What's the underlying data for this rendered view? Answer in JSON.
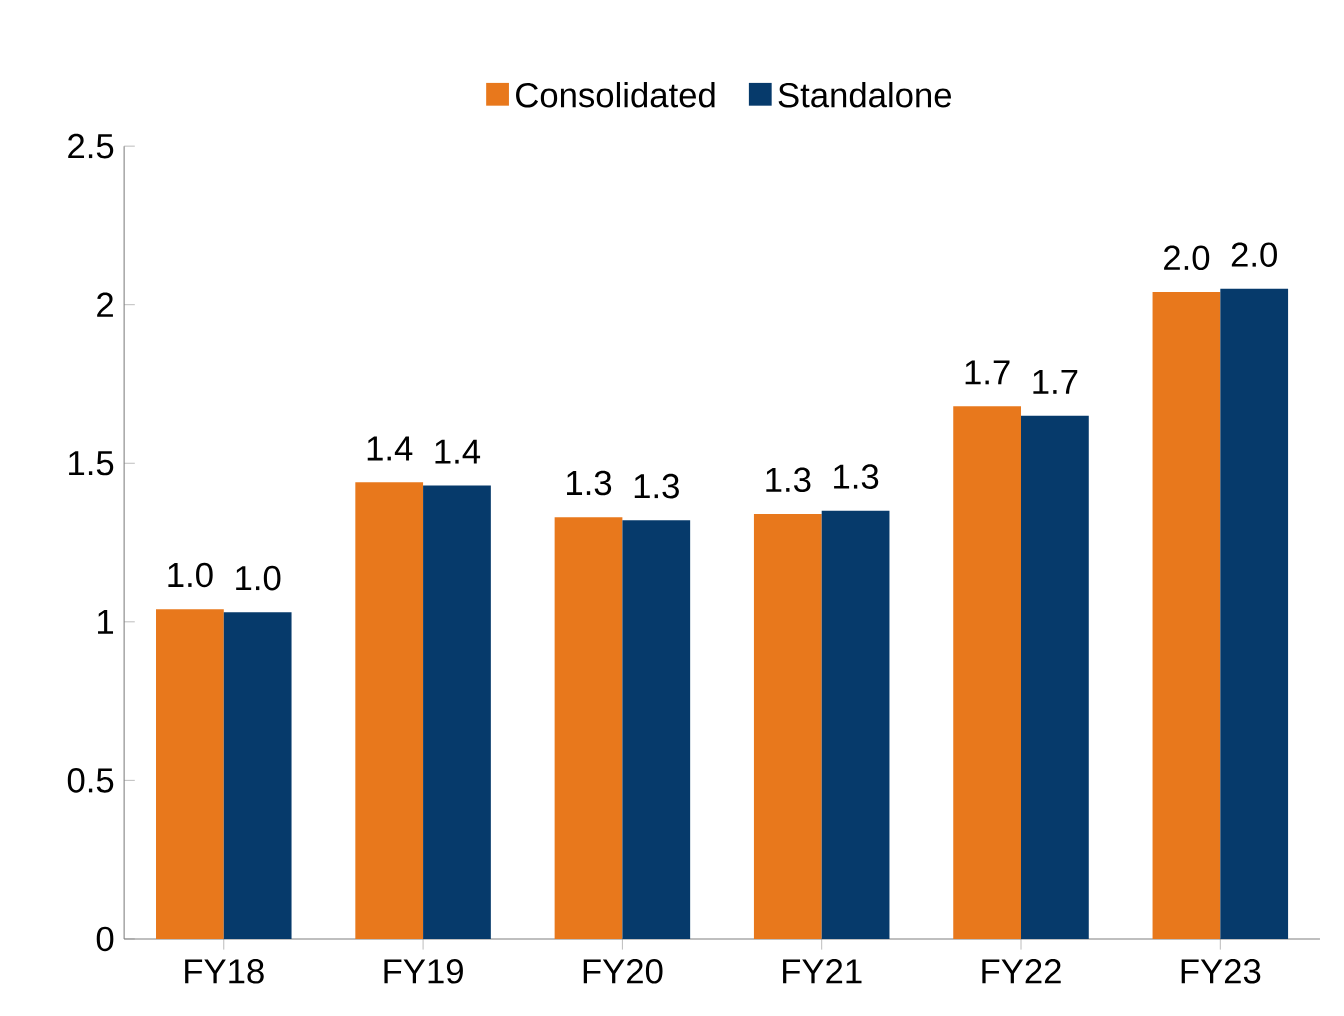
{
  "chart_data": {
    "type": "bar",
    "categories": [
      "FY18",
      "FY19",
      "FY20",
      "FY21",
      "FY22",
      "FY23"
    ],
    "series": [
      {
        "name": "Consolidated",
        "color": "#e8781c",
        "values": [
          1.04,
          1.44,
          1.33,
          1.34,
          1.68,
          2.04
        ],
        "value_labels": [
          "1.0",
          "1.4",
          "1.3",
          "1.3",
          "1.7",
          "2.0"
        ]
      },
      {
        "name": "Standalone",
        "color": "#063a6b",
        "values": [
          1.03,
          1.43,
          1.32,
          1.35,
          1.65,
          2.05
        ],
        "value_labels": [
          "1.0",
          "1.4",
          "1.3",
          "1.3",
          "1.7",
          "2.0"
        ]
      }
    ],
    "ylim": [
      0,
      2.5
    ],
    "yticks": [
      0,
      0.5,
      1,
      1.5,
      2,
      2.5
    ],
    "grid": false,
    "legend": "top"
  }
}
